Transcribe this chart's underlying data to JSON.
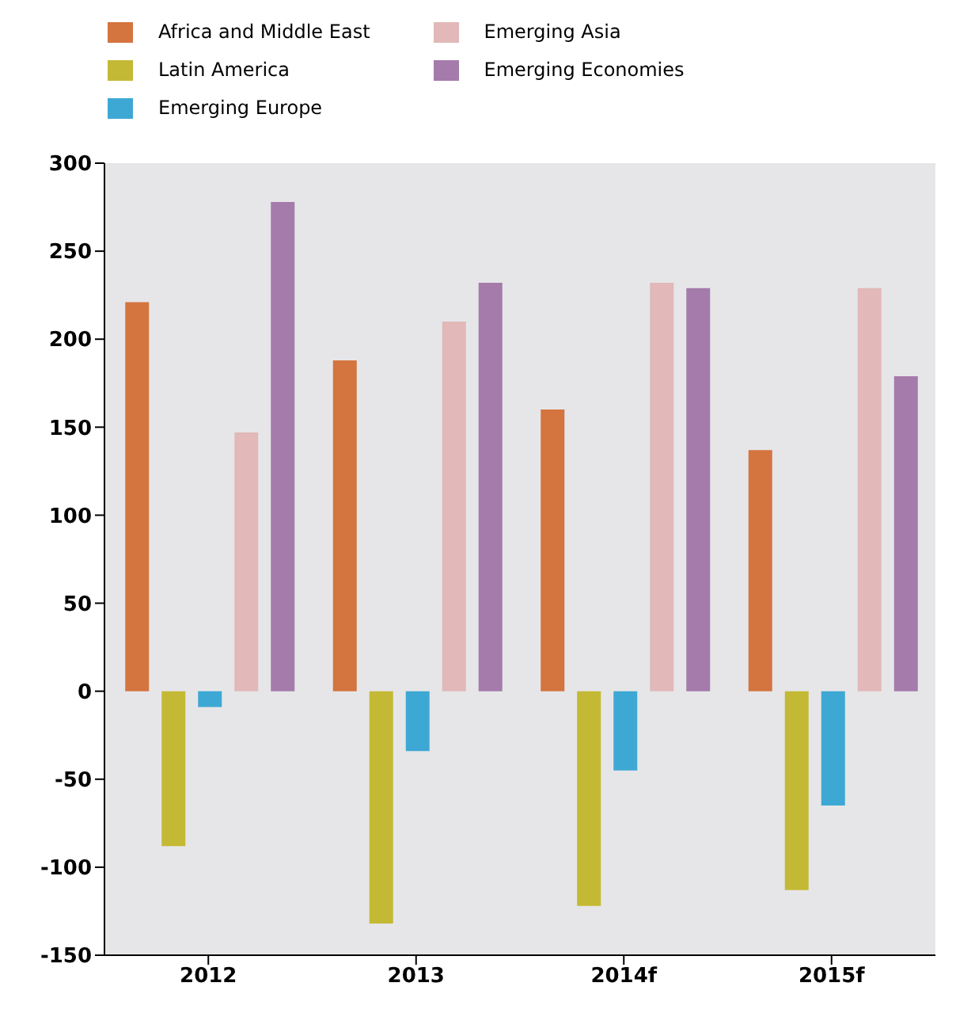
{
  "chart_data": {
    "type": "bar",
    "categories": [
      "2012",
      "2013",
      "2014f",
      "2015f"
    ],
    "series": [
      {
        "name": "Africa and Middle East",
        "color": "#d4743f",
        "values": [
          221,
          188,
          160,
          137
        ]
      },
      {
        "name": "Latin America",
        "color": "#c4b934",
        "values": [
          -88,
          -132,
          -122,
          -113
        ]
      },
      {
        "name": "Emerging Europe",
        "color": "#3ea8d4",
        "values": [
          -9,
          -34,
          -45,
          -65
        ]
      },
      {
        "name": "Emerging Asia",
        "color": "#e2b8b8",
        "values": [
          147,
          210,
          232,
          229
        ]
      },
      {
        "name": "Emerging Economies",
        "color": "#a57bab",
        "values": [
          278,
          232,
          229,
          179
        ]
      }
    ],
    "ylim": [
      -150,
      300
    ],
    "yticks": [
      -150,
      -100,
      -50,
      0,
      50,
      100,
      150,
      200,
      250,
      300
    ],
    "legend": "top left"
  }
}
